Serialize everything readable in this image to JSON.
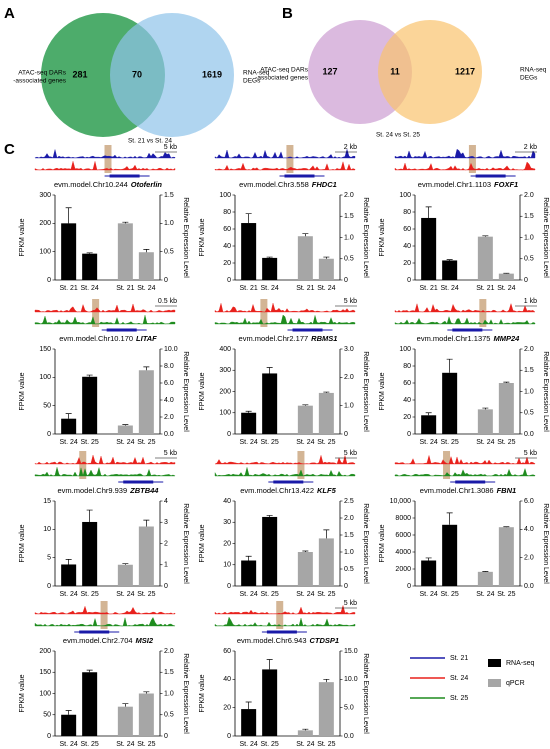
{
  "panels": [
    "A",
    "B",
    "C"
  ],
  "venns": [
    {
      "left_label": [
        "ATAC-seq DARs",
        "-associated genes"
      ],
      "right_label": [
        "RNA-seq",
        "DEGs"
      ],
      "values": [
        281,
        70,
        1619
      ],
      "colors": [
        "#3aa35b",
        "#8ec3ea"
      ],
      "caption": "St. 21 vs St. 24"
    },
    {
      "left_label": [
        "ATAC-seq DARs",
        "-associated genes"
      ],
      "right_label": [
        "RNA-seq",
        "DEGs"
      ],
      "values": [
        127,
        11,
        1217
      ],
      "colors": [
        "#d7b3dc",
        "#f9c36e"
      ],
      "caption": "St. 24 vs St. 25"
    }
  ],
  "legend": {
    "tracks": [
      {
        "name": "St. 21",
        "color": "#1a1aa8"
      },
      {
        "name": "St. 24",
        "color": "#e8211c"
      },
      {
        "name": "St. 25",
        "color": "#1e8c1e"
      }
    ],
    "bars": [
      {
        "name": "RNA-seq",
        "color": "#000000"
      },
      {
        "name": "qPCR",
        "color": "#a6a6a6"
      }
    ]
  },
  "charts": [
    {
      "type": "bar",
      "model": "evm.model.Chr10.244",
      "gene": "Otoferlin",
      "scale": "5 kb",
      "track_colors": [
        "#1a1aa8",
        "#e8211c"
      ],
      "categories": [
        "St. 21",
        "St. 24",
        "St. 21",
        "St. 24"
      ],
      "ylabel": "FPKM value",
      "y2label": "Relative Expression Level",
      "fpkm": [
        200,
        93
      ],
      "fpkm_err": [
        55,
        3
      ],
      "qpcr": [
        1.0,
        0.49
      ],
      "qpcr_err": [
        0.02,
        0.05
      ],
      "ylim": [
        0,
        300
      ],
      "yticks": [
        0,
        100,
        200,
        300
      ],
      "y2lim": [
        0,
        1.5
      ],
      "y2ticks": [
        0,
        0.5,
        {
          "value": 1,
          "label": "1.0"
        },
        1.5
      ]
    },
    {
      "type": "bar",
      "model": "evm.model.Chr3.558",
      "gene": "FHDC1",
      "scale": "2 kb",
      "track_colors": [
        "#1a1aa8",
        "#e8211c"
      ],
      "categories": [
        "St. 21",
        "St. 24",
        "St. 21",
        "St. 24"
      ],
      "ylabel": "FPKM value",
      "y2label": "Relative Expression Level",
      "fpkm": [
        67,
        26
      ],
      "fpkm_err": [
        11,
        1
      ],
      "qpcr": [
        1.03,
        0.5
      ],
      "qpcr_err": [
        0.06,
        0.04
      ],
      "ylim": [
        0,
        100
      ],
      "yticks": [
        0,
        20,
        40,
        60,
        80,
        100
      ],
      "y2lim": [
        0,
        2
      ],
      "y2ticks": [
        0,
        0.5,
        {
          "value": 1,
          "label": "1.0"
        },
        1.5,
        {
          "value": 2,
          "label": "2.0"
        }
      ]
    },
    {
      "type": "bar",
      "model": "evm.model.Chr1.1103",
      "gene": "FOXF1",
      "scale": "2 kb",
      "track_colors": [
        "#1a1aa8",
        "#e8211c"
      ],
      "categories": [
        "St. 21",
        "St. 24",
        "St. 21",
        "St. 24"
      ],
      "ylabel": "FPKM value",
      "y2label": "Relative Expression Level",
      "fpkm": [
        73,
        23
      ],
      "fpkm_err": [
        13,
        1
      ],
      "qpcr": [
        1.02,
        0.15
      ],
      "qpcr_err": [
        0.02,
        0.01
      ],
      "ylim": [
        0,
        100
      ],
      "yticks": [
        0,
        20,
        40,
        60,
        80,
        100
      ],
      "y2lim": [
        0,
        2
      ],
      "y2ticks": [
        0,
        0.5,
        {
          "value": 1,
          "label": "1.0"
        },
        1.5,
        {
          "value": 2,
          "label": "2.0"
        }
      ]
    },
    {
      "type": "bar",
      "model": "evm.model.Chr10.170",
      "gene": "LITAF",
      "scale": "0.5 kb",
      "track_colors": [
        "#e8211c",
        "#1e8c1e"
      ],
      "categories": [
        "St. 24",
        "St. 25",
        "St. 24",
        "St. 25"
      ],
      "ylabel": "FPKM value",
      "y2label": "Relative Expression Level",
      "fpkm": [
        27,
        101
      ],
      "fpkm_err": [
        9,
        3
      ],
      "qpcr": [
        1.0,
        7.5
      ],
      "qpcr_err": [
        0.1,
        0.4
      ],
      "ylim": [
        0,
        150
      ],
      "yticks": [
        0,
        50,
        100,
        150
      ],
      "y2lim": [
        0,
        10
      ],
      "y2ticks": [
        {
          "value": 0,
          "label": "0.0"
        },
        {
          "value": 2,
          "label": "2.0"
        },
        {
          "value": 4,
          "label": "4.0"
        },
        {
          "value": 6,
          "label": "6.0"
        },
        {
          "value": 8,
          "label": "8.0"
        },
        {
          "value": 10,
          "label": "10.0"
        }
      ]
    },
    {
      "type": "bar",
      "model": "evm.model.Chr2.177",
      "gene": "RBMS1",
      "scale": "5 kb",
      "track_colors": [
        "#e8211c",
        "#1e8c1e"
      ],
      "categories": [
        "St. 24",
        "St. 25",
        "St. 24",
        "St. 25"
      ],
      "ylabel": "FPKM value",
      "y2label": "Relative Expression Level",
      "fpkm": [
        100,
        285
      ],
      "fpkm_err": [
        7,
        28
      ],
      "qpcr": [
        1.0,
        1.45
      ],
      "qpcr_err": [
        0.03,
        0.03
      ],
      "ylim": [
        0,
        400
      ],
      "yticks": [
        0,
        100,
        200,
        300,
        400
      ],
      "y2lim": [
        0,
        3
      ],
      "y2ticks": [
        0,
        {
          "value": 1,
          "label": "1.0"
        },
        {
          "value": 2,
          "label": "2.0"
        },
        {
          "value": 3,
          "label": "3.0"
        }
      ]
    },
    {
      "type": "bar",
      "model": "evm.model.Chr1.1375",
      "gene": "MMP24",
      "scale": "1 kb",
      "track_colors": [
        "#e8211c",
        "#1e8c1e"
      ],
      "categories": [
        "St. 24",
        "St. 25",
        "St. 24",
        "St. 25"
      ],
      "ylabel": "FPKM value",
      "y2label": "Relative Expression Level",
      "fpkm": [
        22,
        72
      ],
      "fpkm_err": [
        3,
        16
      ],
      "qpcr": [
        0.58,
        1.2
      ],
      "qpcr_err": [
        0.03,
        0.02
      ],
      "ylim": [
        0,
        100
      ],
      "yticks": [
        0,
        20,
        40,
        60,
        80,
        100
      ],
      "y2lim": [
        0,
        2
      ],
      "y2ticks": [
        {
          "value": 0,
          "label": "0.0"
        },
        0.5,
        {
          "value": 1,
          "label": "1.0"
        },
        1.5,
        {
          "value": 2,
          "label": "2.0"
        }
      ]
    },
    {
      "type": "bar",
      "model": "evm.model.Chr9.939",
      "gene": "ZBTB44",
      "scale": "5 kb",
      "track_colors": [
        "#e8211c",
        "#1e8c1e"
      ],
      "categories": [
        "St. 24",
        "St. 25",
        "St. 24",
        "St. 25"
      ],
      "ylabel": "FPKM value",
      "y2label": "Relative Expression Level",
      "fpkm": [
        3.8,
        11.3
      ],
      "fpkm_err": [
        0.9,
        2.1
      ],
      "qpcr": [
        1.0,
        2.8
      ],
      "qpcr_err": [
        0.05,
        0.3
      ],
      "ylim": [
        0,
        15
      ],
      "yticks": [
        0,
        5,
        10,
        15
      ],
      "y2lim": [
        0,
        4
      ],
      "y2ticks": [
        0,
        1,
        2,
        3,
        4
      ]
    },
    {
      "type": "bar",
      "model": "evm.model.Chr13.422",
      "gene": "KLF5",
      "scale": "5 kb",
      "track_colors": [
        "#e8211c",
        "#1e8c1e"
      ],
      "categories": [
        "St. 24",
        "St. 25",
        "St. 24",
        "St. 25"
      ],
      "ylabel": "FPKM value",
      "y2label": "Relative Expression Level",
      "fpkm": [
        12,
        32.5
      ],
      "fpkm_err": [
        2,
        0.7
      ],
      "qpcr": [
        1.0,
        1.4
      ],
      "qpcr_err": [
        0.03,
        0.25
      ],
      "ylim": [
        0,
        40
      ],
      "yticks": [
        0,
        10,
        20,
        30,
        40
      ],
      "y2lim": [
        0,
        2.5
      ],
      "y2ticks": [
        0,
        0.5,
        {
          "value": 1,
          "label": "1.0"
        },
        1.5,
        {
          "value": 2,
          "label": "2.0"
        },
        2.5
      ]
    },
    {
      "type": "bar",
      "model": "evm.model.Chr1.3086",
      "gene": "FBN1",
      "scale": "5 kb",
      "track_colors": [
        "#e8211c",
        "#1e8c1e"
      ],
      "categories": [
        "St. 24",
        "St. 25",
        "St. 24",
        "St. 25"
      ],
      "ylabel": "FPKM value",
      "y2label": "Relative Expression Level",
      "fpkm": [
        3000,
        7200
      ],
      "fpkm_err": [
        300,
        1400
      ],
      "qpcr": [
        1.0,
        4.15
      ],
      "qpcr_err": [
        0.03,
        0.03
      ],
      "ylim": [
        0,
        10000
      ],
      "yticks": [
        0,
        2000,
        4000,
        6000,
        8000,
        {
          "value": 10000,
          "label": "10,000"
        }
      ],
      "y2lim": [
        0,
        6
      ],
      "y2ticks": [
        {
          "value": 0,
          "label": "0.0"
        },
        {
          "value": 2,
          "label": "2.0"
        },
        {
          "value": 4,
          "label": "4.0"
        },
        {
          "value": 6,
          "label": "6.0"
        }
      ]
    },
    {
      "type": "bar",
      "model": "evm.model.Chr2.704",
      "gene": "MSI2",
      "track_colors": [
        "#e8211c",
        "#1e8c1e"
      ],
      "categories": [
        "St. 24",
        "St. 25",
        "St. 24",
        "St. 25"
      ],
      "ylabel": "FPKM value",
      "y2label": "Relative Expression Level",
      "fpkm": [
        50,
        150
      ],
      "fpkm_err": [
        10,
        5
      ],
      "qpcr": [
        0.69,
        1.0
      ],
      "qpcr_err": [
        0.07,
        0.04
      ],
      "ylim": [
        0,
        200
      ],
      "yticks": [
        0,
        50,
        100,
        150,
        200
      ],
      "y2lim": [
        0,
        2
      ],
      "y2ticks": [
        0,
        0.5,
        {
          "value": 1,
          "label": "1.0"
        },
        1.5,
        {
          "value": 2,
          "label": "2.0"
        }
      ]
    },
    {
      "type": "bar",
      "model": "evm.model.Chr6.943",
      "gene": "CTDSP1",
      "scale": "5 kb",
      "track_colors": [
        "#e8211c",
        "#1e8c1e"
      ],
      "categories": [
        "St. 24",
        "St. 25",
        "St. 24",
        "St. 25"
      ],
      "ylabel": "FPKM value",
      "y2label": "Relative Expression Level",
      "fpkm": [
        19,
        47
      ],
      "fpkm_err": [
        5,
        7
      ],
      "qpcr": [
        1.0,
        9.5
      ],
      "qpcr_err": [
        0.2,
        0.5
      ],
      "ylim": [
        0,
        60
      ],
      "yticks": [
        0,
        20,
        40,
        60
      ],
      "y2lim": [
        0,
        15
      ],
      "y2ticks": [
        {
          "value": 0,
          "label": "0.0"
        },
        {
          "value": 5,
          "label": "5.0"
        },
        {
          "value": 10,
          "label": "10.0"
        },
        {
          "value": 15,
          "label": "15.0"
        }
      ]
    }
  ]
}
